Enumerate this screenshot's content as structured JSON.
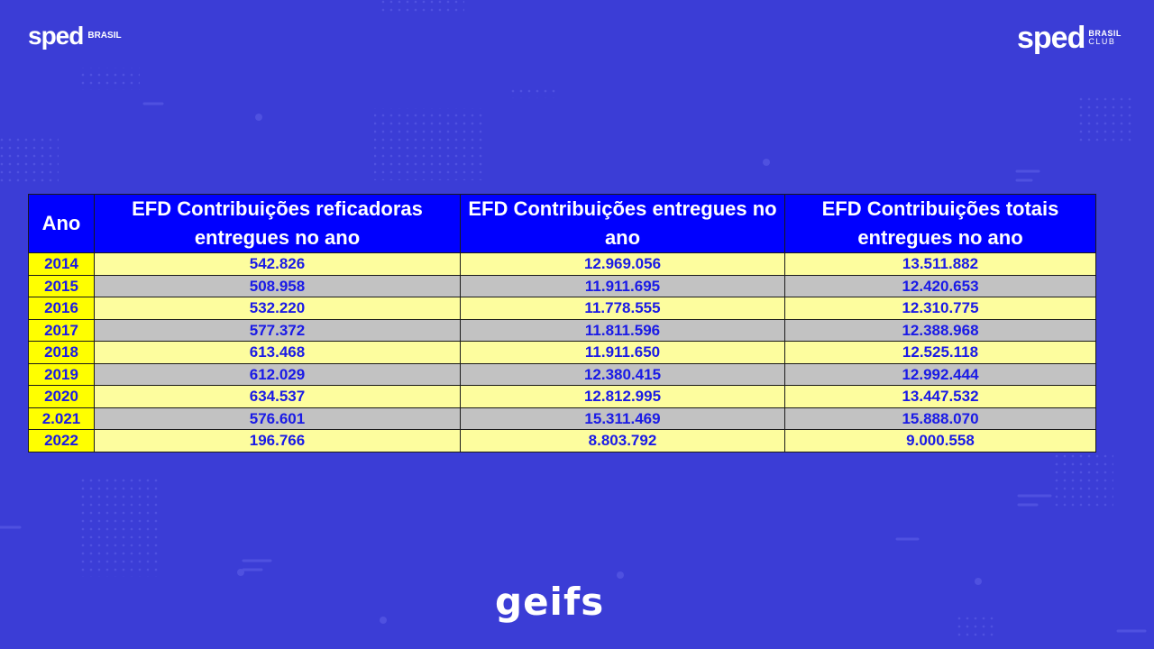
{
  "logos": {
    "left": {
      "word": "sped",
      "tag": "BRASIL"
    },
    "right": {
      "word": "sped",
      "tag_line1": "BRASIL",
      "tag_line2": "CLUB"
    },
    "footer": "geifs"
  },
  "table": {
    "headers": [
      "Ano",
      "EFD Contribuições reficadoras entregues no ano",
      "EFD Contribuições entregues no ano",
      "EFD Contribuições totais entregues no ano"
    ],
    "rows": [
      [
        "2014",
        "542.826",
        "12.969.056",
        "13.511.882"
      ],
      [
        "2015",
        "508.958",
        "11.911.695",
        "12.420.653"
      ],
      [
        "2016",
        "532.220",
        "11.778.555",
        "12.310.775"
      ],
      [
        "2017",
        "577.372",
        "11.811.596",
        "12.388.968"
      ],
      [
        "2018",
        "613.468",
        "11.911.650",
        "12.525.118"
      ],
      [
        "2019",
        "612.029",
        "12.380.415",
        "12.992.444"
      ],
      [
        "2020",
        "634.537",
        "12.812.995",
        "13.447.532"
      ],
      [
        "2.021",
        "576.601",
        "15.311.469",
        "15.888.070"
      ],
      [
        "2022",
        "196.766",
        "8.803.792",
        "9.000.558"
      ]
    ]
  },
  "colors": {
    "background": "#3b3dd6",
    "header_bg": "#0000ff",
    "year_bg": "#ffff00",
    "row_light": "#fdfd9e",
    "row_gray": "#c2c2c2",
    "cell_text": "#1a1ae6"
  }
}
